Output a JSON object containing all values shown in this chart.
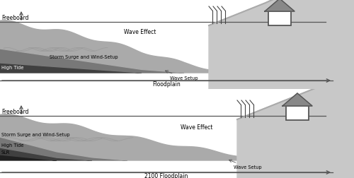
{
  "bg_color": "#ffffff",
  "panel1": {
    "freeboard_label": "Freeboard",
    "wave_effect_label": "Wave Effect",
    "wave_setup_label": "Wave Setup",
    "storm_surge_label": "Storm Surge and Wind-Setup",
    "high_tide_label": "High Tide",
    "floodplain_label": "Floodplain"
  },
  "panel2": {
    "freeboard_label": "Freeboard",
    "wave_effect_label": "Wave Effect",
    "wave_setup_label": "Wave Setup",
    "storm_surge_label": "Storm Surge and Wind-Setup",
    "high_tide_label": "High Tide",
    "slr_label": "SLR",
    "floodplain_label": "2100 Floodplain"
  },
  "shore_color": "#c8c8c8",
  "shore_line_color": "#aaaaaa",
  "wave_effect_color": "#aaaaaa",
  "storm_surge_color": "#787878",
  "high_tide_color": "#404040",
  "slr_color": "#202020",
  "freeboard_line_color": "#555555",
  "arrow_color": "#555555",
  "text_color": "#000000",
  "house_fill": "#888888",
  "house_edge": "#555555"
}
